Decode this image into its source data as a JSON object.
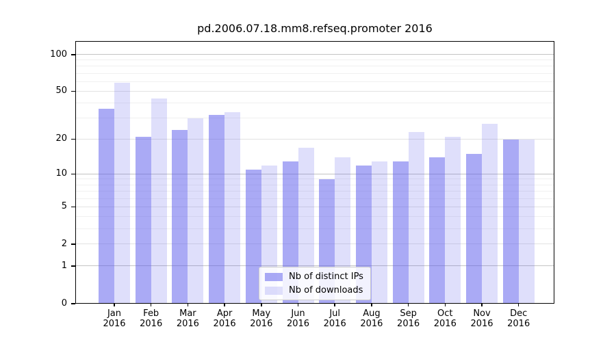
{
  "chart_data": {
    "type": "bar",
    "title": "pd.2006.07.18.mm8.refseq.promoter 2016",
    "categories": [
      "Jan 2016",
      "Feb 2016",
      "Mar 2016",
      "Apr 2016",
      "May 2016",
      "Jun 2016",
      "Jul 2016",
      "Aug 2016",
      "Sep 2016",
      "Oct 2016",
      "Nov 2016",
      "Dec 2016"
    ],
    "series": [
      {
        "key": "distinct-ips",
        "name": "Nb of distinct IPs",
        "color": "rgba(85,85,235,0.5)",
        "values": [
          36,
          21,
          24,
          32,
          11,
          13,
          9,
          12,
          13,
          14,
          15,
          20
        ]
      },
      {
        "key": "downloads",
        "name": "Nb of downloads",
        "color": "rgba(85,85,235,0.19)",
        "values": [
          59,
          44,
          30,
          34,
          12,
          17,
          14,
          13,
          23,
          21,
          27,
          20
        ]
      }
    ],
    "yscale": "log10(value+1)",
    "yticks": [
      0,
      1,
      2,
      5,
      10,
      20,
      50,
      100
    ],
    "major_gridlines": [
      1,
      10,
      100
    ],
    "mid_gridlines": [
      2,
      5,
      20,
      50
    ],
    "minor_gridlines": [
      3,
      4,
      6,
      7,
      8,
      9,
      30,
      40,
      60,
      70,
      80,
      90
    ],
    "ylim": [
      0,
      121
    ],
    "grid": "horizontal",
    "legend_position": "lower center"
  }
}
